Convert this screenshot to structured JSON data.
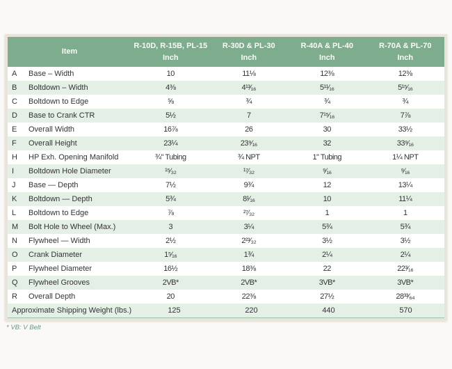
{
  "table": {
    "columns": [
      {
        "label": "Item",
        "unit": ""
      },
      {
        "label": "R-10D, R-15B, PL-15",
        "unit": "Inch"
      },
      {
        "label": "R-30D & PL-30",
        "unit": "Inch"
      },
      {
        "label": "R-40A & PL-40",
        "unit": "Inch"
      },
      {
        "label": "R-70A & PL-70",
        "unit": "Inch"
      }
    ],
    "rows": [
      {
        "key": "A",
        "item": "Base – Width",
        "values": [
          "10",
          "11⅛",
          "12⅜",
          "12⅜"
        ]
      },
      {
        "key": "B",
        "item": "Boltdown – Width",
        "values": [
          "4⅜",
          "4¹³⁄₁₆",
          "5¹¹⁄₁₆",
          "5¹⁵⁄₁₆"
        ]
      },
      {
        "key": "C",
        "item": "Boltdown to Edge",
        "values": [
          "⅝",
          "¾",
          "¾",
          "¾"
        ]
      },
      {
        "key": "D",
        "item": "Base to Crank CTR",
        "values": [
          "5½",
          "7",
          "7¹⁵⁄₁₆",
          "7⅞"
        ]
      },
      {
        "key": "E",
        "item": "Overall Width",
        "values": [
          "16⅞",
          "26",
          "30",
          "33½"
        ]
      },
      {
        "key": "F",
        "item": "Overall Height",
        "values": [
          "23¼",
          "23⁹⁄₁₆",
          "32",
          "33⁹⁄₁₆"
        ]
      },
      {
        "key": "H",
        "item": "HP Exh. Opening Manifold",
        "values": [
          "¾\" Tubing",
          "¾ NPT",
          "1\" Tubing",
          "1¼ NPT"
        ]
      },
      {
        "key": "I",
        "item": "Boltdown Hole Diameter",
        "values": [
          "¹⁵⁄₃₂",
          "¹⁷⁄₃₂",
          "⁹⁄₁₆",
          "⁹⁄₁₆"
        ]
      },
      {
        "key": "J",
        "item": "Base — Depth",
        "values": [
          "7½",
          "9¾",
          "12",
          "13¼"
        ]
      },
      {
        "key": "K",
        "item": "Boltdown — Depth",
        "values": [
          "5¾",
          "8¹⁄₁₆",
          "10",
          "11¼"
        ]
      },
      {
        "key": "L",
        "item": "Boltdown to Edge",
        "values": [
          "⅞",
          "²⁷⁄₃₂",
          "1",
          "1"
        ]
      },
      {
        "key": "M",
        "item": "Bolt Hole to Wheel (Max.)",
        "values": [
          "3",
          "3¼",
          "5¾",
          "5¾"
        ]
      },
      {
        "key": "N",
        "item": "Flywheel — Width",
        "values": [
          "2½",
          "2²³⁄₃₂",
          "3½",
          "3½"
        ]
      },
      {
        "key": "O",
        "item": "Crank Diameter",
        "values": [
          "1⁵⁄₁₆",
          "1¾",
          "2¼",
          "2¼"
        ]
      },
      {
        "key": "P",
        "item": "Flywheel Diameter",
        "values": [
          "16½",
          "18⅜",
          "22",
          "22³⁄₁₆"
        ]
      },
      {
        "key": "Q",
        "item": "Flywheel Grooves",
        "values": [
          "2VB*",
          "2VB*",
          "3VB*",
          "3VB*"
        ]
      },
      {
        "key": "R",
        "item": "Overall Depth",
        "values": [
          "20",
          "22⅜",
          "27½",
          "28³³⁄₆₄"
        ]
      }
    ],
    "footer_row": {
      "item": "Approximate Shipping Weight (lbs.)",
      "values": [
        "125",
        "220",
        "440",
        "570"
      ]
    },
    "footnote": "* VB: V Belt"
  },
  "colors": {
    "header_green": "#7ead8e",
    "stripe_green": "#e4efe6",
    "frame_beige": "#e9e4da",
    "footnote_green": "#649a7c"
  }
}
